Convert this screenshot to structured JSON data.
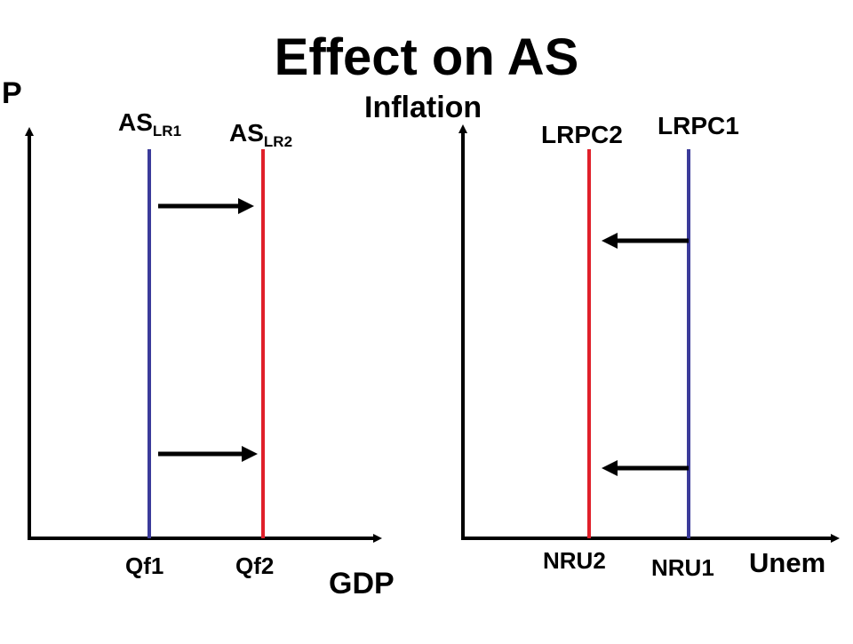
{
  "title": "Effect on AS",
  "left_panel": {
    "y_axis_label": "P",
    "x_axis_label": "GDP",
    "curves": [
      {
        "name": "AS",
        "subscript": "LR1",
        "color": "#3b3b9a"
      },
      {
        "name": "AS",
        "subscript": "LR2",
        "color": "#e0202a"
      }
    ],
    "ticks": [
      "Qf1",
      "Qf2"
    ],
    "shift_direction": "right"
  },
  "right_panel": {
    "y_axis_label": "Inflation",
    "x_axis_label": "Unem",
    "curves": [
      {
        "name": "LRPC2",
        "color": "#e0202a"
      },
      {
        "name": "LRPC1",
        "color": "#3b3b9a"
      }
    ],
    "ticks": [
      "NRU2",
      "NRU1"
    ],
    "shift_direction": "left"
  }
}
